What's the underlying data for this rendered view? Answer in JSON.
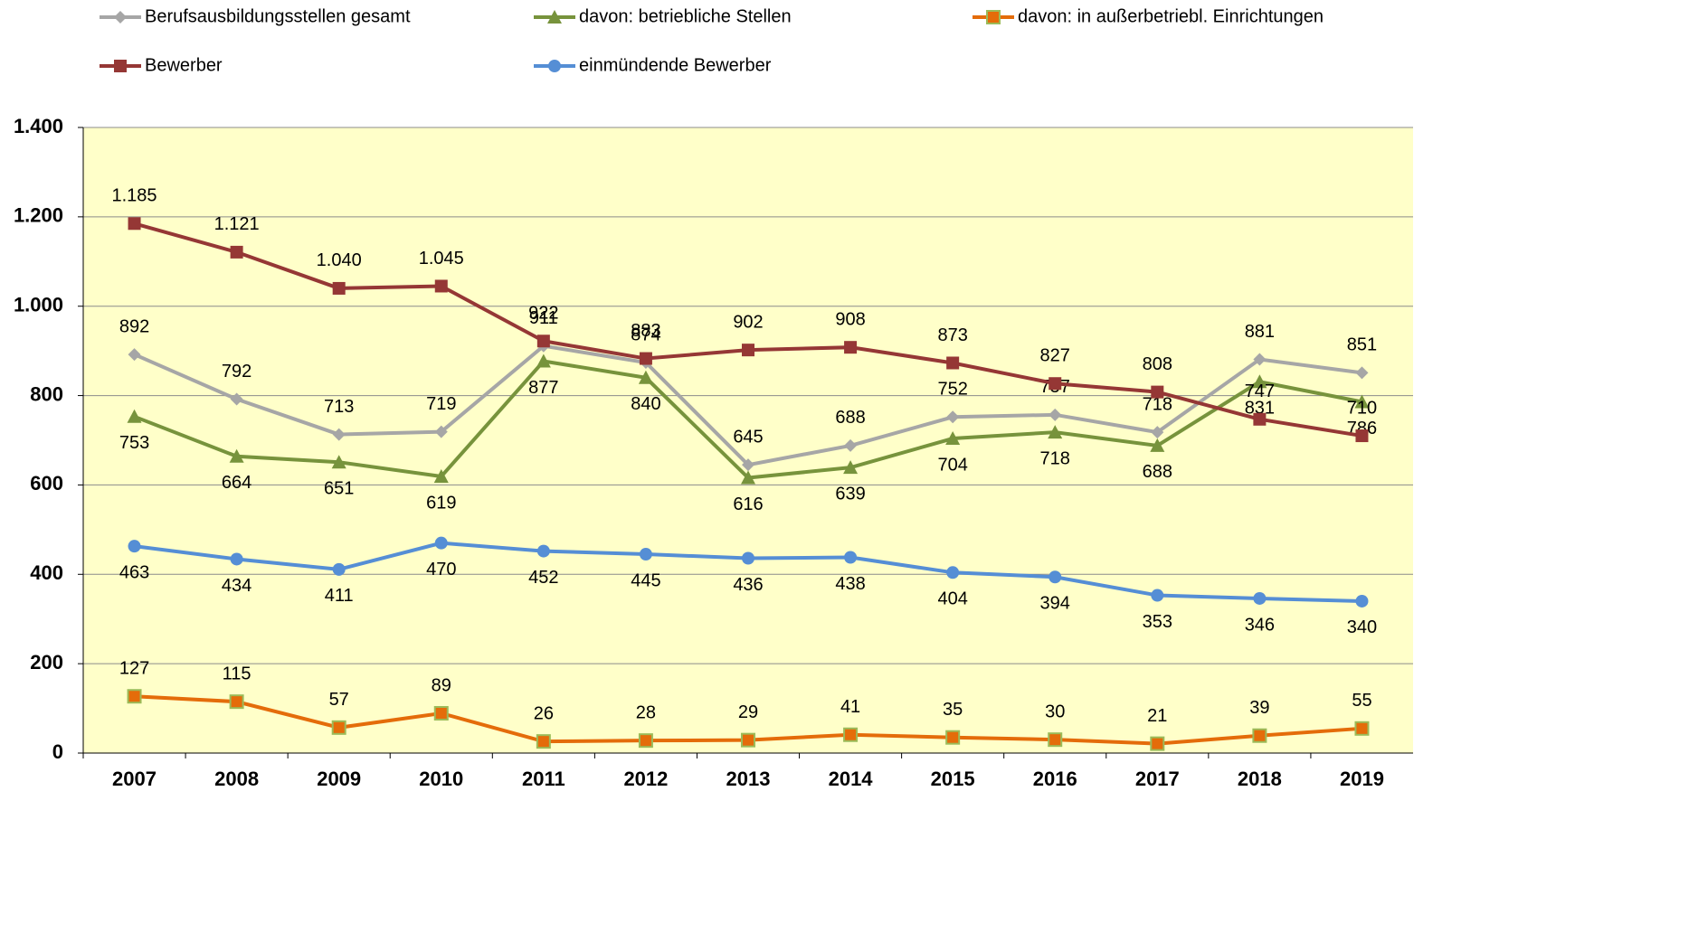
{
  "chart_data": {
    "type": "line",
    "categories": [
      "2007",
      "2008",
      "2009",
      "2010",
      "2011",
      "2012",
      "2013",
      "2014",
      "2015",
      "2016",
      "2017",
      "2018",
      "2019"
    ],
    "ylim": [
      0,
      1400
    ],
    "yticks": [
      0,
      200,
      400,
      600,
      800,
      {
        "value": 1000,
        "label": "1.000"
      },
      {
        "value": 1200,
        "label": "1.200"
      },
      {
        "value": 1400,
        "label": "1.400"
      }
    ],
    "grid": true,
    "legend": "top",
    "series": [
      {
        "name": "Berufsausbildungsstellen gesamt",
        "color": "#a6a6a6",
        "marker": "diamond",
        "label_position": "above",
        "values": [
          892,
          792,
          713,
          719,
          911,
          874,
          645,
          688,
          752,
          757,
          718,
          881,
          851
        ]
      },
      {
        "name": "davon: betriebliche Stellen",
        "color": "#77933c",
        "marker": "triangle",
        "label_position": "below",
        "values": [
          753,
          664,
          651,
          619,
          877,
          840,
          616,
          639,
          704,
          718,
          688,
          831,
          786
        ]
      },
      {
        "name": "davon: in außerbetriebl. Einrichtungen",
        "color": "#e46c0a",
        "marker": "square",
        "label_position": "above",
        "values": [
          127,
          115,
          57,
          89,
          26,
          28,
          29,
          41,
          35,
          30,
          21,
          39,
          55
        ]
      },
      {
        "name": "Bewerber",
        "color": "#953735",
        "marker": "square",
        "label_position": "above",
        "values": [
          1185,
          1121,
          1040,
          1045,
          922,
          883,
          902,
          908,
          873,
          827,
          808,
          747,
          710
        ],
        "value_labels": [
          "1.185",
          "1.121",
          "1.040",
          "1.045",
          "922",
          "883",
          "902",
          "908",
          "873",
          "827",
          "808",
          "747",
          "710"
        ]
      },
      {
        "name": "einmündende Bewerber",
        "color": "#558ed5",
        "marker": "circle",
        "label_position": "below",
        "values": [
          463,
          434,
          411,
          470,
          452,
          445,
          436,
          438,
          404,
          394,
          353,
          346,
          340
        ]
      }
    ]
  }
}
